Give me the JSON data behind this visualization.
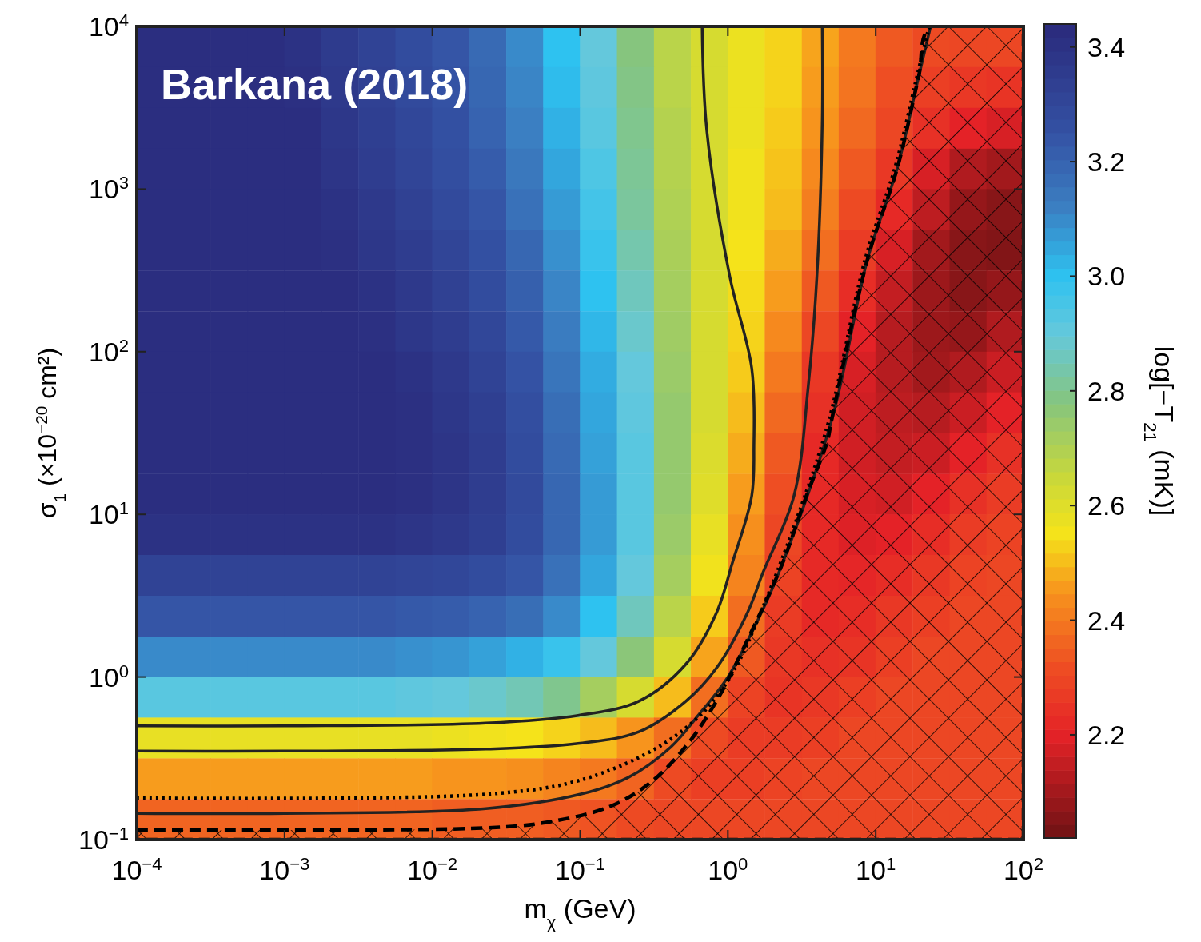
{
  "chart_data": {
    "type": "heatmap",
    "xlabel": "m$_{χ}$ (GeV)",
    "ylabel": "σ$_{1}$ (×10$^{−20}$ cm²)",
    "clabel": "log[−T$_{21}$ (mK)]",
    "annotations": [
      "Barkana (2018)"
    ],
    "log": "xy",
    "xlim": [
      0.0001,
      100
    ],
    "xticks": [
      {
        "value": 0.0001,
        "label": "10$^{−4}$"
      },
      {
        "value": 0.001,
        "label": "10$^{−3}$"
      },
      {
        "value": 0.01,
        "label": "10$^{−2}$"
      },
      {
        "value": 0.1,
        "label": "10$^{−1}$"
      },
      {
        "value": 1,
        "label": "10$^{0}$"
      },
      {
        "value": 10,
        "label": "10$^{1}$"
      },
      {
        "value": 100,
        "label": "10$^{2}$"
      }
    ],
    "ylim": [
      0.1,
      10000
    ],
    "yticks": [
      {
        "value": 0.1,
        "label": "10$^{−1}$"
      },
      {
        "value": 1,
        "label": "10$^{0}$"
      },
      {
        "value": 10,
        "label": "10$^{1}$"
      },
      {
        "value": 100,
        "label": "10$^{2}$"
      },
      {
        "value": 1000,
        "label": "10$^{3}$"
      },
      {
        "value": 10000,
        "label": "10$^{4}$"
      }
    ],
    "clim": [
      2.02,
      3.44
    ],
    "cticks": [
      2.2,
      2.4,
      2.6,
      2.8,
      {
        "value": 3,
        "label": "3.0"
      },
      3.2,
      3.4
    ],
    "x": [
      0.000133,
      0.000237,
      0.000422,
      0.00075,
      0.00133,
      0.00237,
      0.00422,
      0.0075,
      0.0133,
      0.0237,
      0.0422,
      0.075,
      0.133,
      0.237,
      0.422,
      0.75,
      1.33,
      2.37,
      4.22,
      7.5,
      13.3,
      23.7,
      42.2,
      75
    ],
    "y": [
      7500,
      4220,
      2370,
      1330,
      750,
      422,
      237,
      133,
      75,
      42.2,
      23.7,
      13.3,
      7.5,
      4.22,
      2.37,
      1.33,
      0.75,
      0.422,
      0.237,
      0.133
    ],
    "cells": [
      [
        3.42,
        3.42,
        3.42,
        3.42,
        3.4,
        3.36,
        3.32,
        3.28,
        3.24,
        3.18,
        3.1,
        3.0,
        2.9,
        2.78,
        2.68,
        2.62,
        2.57,
        2.53,
        2.47,
        2.4,
        2.34,
        2.31,
        2.3,
        2.3
      ],
      [
        3.42,
        3.42,
        3.42,
        3.42,
        3.41,
        3.37,
        3.33,
        3.29,
        3.25,
        3.19,
        3.11,
        3.01,
        2.91,
        2.79,
        2.68,
        2.62,
        2.57,
        2.53,
        2.46,
        2.39,
        2.32,
        2.28,
        2.26,
        2.25
      ],
      [
        3.42,
        3.42,
        3.42,
        3.42,
        3.42,
        3.38,
        3.34,
        3.3,
        3.26,
        3.2,
        3.12,
        3.03,
        2.92,
        2.8,
        2.69,
        2.62,
        2.57,
        2.52,
        2.45,
        2.37,
        2.3,
        2.24,
        2.2,
        2.18
      ],
      [
        3.42,
        3.42,
        3.42,
        3.42,
        3.42,
        3.39,
        3.35,
        3.31,
        3.27,
        3.22,
        3.14,
        3.05,
        2.94,
        2.81,
        2.69,
        2.62,
        2.56,
        2.51,
        2.43,
        2.34,
        2.26,
        2.18,
        2.12,
        2.1
      ],
      [
        3.42,
        3.42,
        3.42,
        3.42,
        3.42,
        3.4,
        3.37,
        3.33,
        3.29,
        3.24,
        3.16,
        3.07,
        2.96,
        2.82,
        2.7,
        2.62,
        2.56,
        2.5,
        2.41,
        2.31,
        2.22,
        2.14,
        2.08,
        2.06
      ],
      [
        3.42,
        3.42,
        3.42,
        3.42,
        3.42,
        3.41,
        3.38,
        3.35,
        3.31,
        3.26,
        3.19,
        3.09,
        2.98,
        2.84,
        2.71,
        2.62,
        2.55,
        2.48,
        2.38,
        2.27,
        2.18,
        2.1,
        2.06,
        2.05
      ],
      [
        3.42,
        3.42,
        3.42,
        3.42,
        3.42,
        3.42,
        3.4,
        3.37,
        3.33,
        3.28,
        3.21,
        3.11,
        3.0,
        2.86,
        2.72,
        2.62,
        2.54,
        2.46,
        2.34,
        2.23,
        2.15,
        2.09,
        2.06,
        2.08
      ],
      [
        3.42,
        3.42,
        3.42,
        3.42,
        3.42,
        3.42,
        3.41,
        3.38,
        3.35,
        3.3,
        3.23,
        3.13,
        3.02,
        2.88,
        2.73,
        2.62,
        2.53,
        2.43,
        2.3,
        2.2,
        2.13,
        2.09,
        2.08,
        2.12
      ],
      [
        3.42,
        3.42,
        3.42,
        3.42,
        3.42,
        3.42,
        3.42,
        3.4,
        3.37,
        3.32,
        3.25,
        3.15,
        3.04,
        2.9,
        2.74,
        2.62,
        2.52,
        2.4,
        2.26,
        2.18,
        2.13,
        2.1,
        2.12,
        2.16
      ],
      [
        3.42,
        3.42,
        3.42,
        3.42,
        3.42,
        3.42,
        3.42,
        3.41,
        3.38,
        3.34,
        3.27,
        3.17,
        3.05,
        2.91,
        2.75,
        2.62,
        2.5,
        2.37,
        2.24,
        2.17,
        2.14,
        2.13,
        2.16,
        2.2
      ],
      [
        3.42,
        3.42,
        3.42,
        3.42,
        3.42,
        3.42,
        3.42,
        3.41,
        3.39,
        3.35,
        3.28,
        3.18,
        3.06,
        2.92,
        2.75,
        2.61,
        2.48,
        2.34,
        2.22,
        2.17,
        2.15,
        2.16,
        2.2,
        2.24
      ],
      [
        3.42,
        3.42,
        3.42,
        3.42,
        3.42,
        3.42,
        3.42,
        3.41,
        3.39,
        3.35,
        3.29,
        3.19,
        3.07,
        2.92,
        2.75,
        2.6,
        2.46,
        2.32,
        2.22,
        2.18,
        2.17,
        2.2,
        2.24,
        2.27
      ],
      [
        3.4,
        3.4,
        3.4,
        3.4,
        3.4,
        3.4,
        3.4,
        3.39,
        3.37,
        3.34,
        3.28,
        3.19,
        3.07,
        2.92,
        2.74,
        2.58,
        2.44,
        2.3,
        2.22,
        2.19,
        2.2,
        2.23,
        2.27,
        2.29
      ],
      [
        3.32,
        3.32,
        3.32,
        3.32,
        3.32,
        3.32,
        3.32,
        3.31,
        3.3,
        3.28,
        3.24,
        3.16,
        3.05,
        2.9,
        2.72,
        2.56,
        2.42,
        2.29,
        2.22,
        2.21,
        2.23,
        2.26,
        2.29,
        2.3
      ],
      [
        3.24,
        3.24,
        3.24,
        3.24,
        3.24,
        3.24,
        3.24,
        3.23,
        3.22,
        3.2,
        3.17,
        3.1,
        3.0,
        2.86,
        2.68,
        2.52,
        2.38,
        2.27,
        2.22,
        2.23,
        2.26,
        2.28,
        2.3,
        2.3
      ],
      [
        3.1,
        3.1,
        3.1,
        3.1,
        3.1,
        3.1,
        3.1,
        3.09,
        3.08,
        3.06,
        3.03,
        2.98,
        2.9,
        2.77,
        2.62,
        2.47,
        2.34,
        2.26,
        2.24,
        2.25,
        2.28,
        2.3,
        2.3,
        2.3
      ],
      [
        2.92,
        2.92,
        2.92,
        2.92,
        2.92,
        2.92,
        2.92,
        2.91,
        2.9,
        2.88,
        2.85,
        2.8,
        2.72,
        2.62,
        2.5,
        2.38,
        2.29,
        2.25,
        2.26,
        2.28,
        2.3,
        2.3,
        2.3,
        2.3
      ],
      [
        2.58,
        2.58,
        2.58,
        2.58,
        2.58,
        2.58,
        2.58,
        2.58,
        2.57,
        2.56,
        2.55,
        2.53,
        2.5,
        2.45,
        2.38,
        2.31,
        2.27,
        2.27,
        2.28,
        2.3,
        2.3,
        2.3,
        2.3,
        2.3
      ],
      [
        2.46,
        2.46,
        2.46,
        2.46,
        2.46,
        2.46,
        2.46,
        2.46,
        2.45,
        2.45,
        2.44,
        2.42,
        2.4,
        2.36,
        2.31,
        2.28,
        2.28,
        2.29,
        2.3,
        2.3,
        2.3,
        2.3,
        2.3,
        2.3
      ],
      [
        2.36,
        2.36,
        2.36,
        2.36,
        2.36,
        2.36,
        2.36,
        2.36,
        2.35,
        2.35,
        2.35,
        2.34,
        2.33,
        2.31,
        2.3,
        2.3,
        2.3,
        2.3,
        2.3,
        2.3,
        2.3,
        2.3,
        2.3,
        2.3
      ]
    ],
    "series": [
      {
        "type": "line",
        "color": "#222222",
        "line_style": "solid",
        "x": [
          0.0001,
          0.001,
          0.023,
          0.097,
          0.25,
          0.52,
          0.84,
          1.07,
          1.45,
          1.5,
          1.45,
          1.03,
          0.72,
          0.67
        ],
        "values": [
          0.5,
          0.5,
          0.52,
          0.58,
          0.71,
          1.2,
          2.5,
          5,
          13,
          26,
          79,
          290,
          2300,
          10000
        ]
      },
      {
        "type": "line",
        "color": "#222222",
        "line_style": "solid",
        "x": [
          0.0001,
          0.001,
          0.023,
          0.097,
          0.25,
          0.52,
          0.84,
          1.36,
          1.73,
          2.8,
          3.5,
          4.0,
          4.35,
          4.35
        ],
        "values": [
          0.35,
          0.35,
          0.36,
          0.39,
          0.46,
          0.71,
          1.14,
          2.5,
          4.4,
          13,
          62,
          290,
          2600,
          10000
        ]
      },
      {
        "type": "line",
        "color": "#222222",
        "line_style": "solid",
        "x": [
          0.0001,
          0.001,
          0.023,
          0.1,
          0.21,
          0.41,
          0.63,
          1.0,
          1.5,
          2.1,
          5,
          8.8,
          14,
          19.5,
          23.5
        ],
        "values": [
          0.145,
          0.145,
          0.155,
          0.19,
          0.24,
          0.37,
          0.58,
          1.0,
          2.0,
          3.9,
          37,
          370,
          1350,
          4900,
          10000
        ]
      },
      {
        "type": "line",
        "color": "#000000",
        "line_style": "dotted",
        "x": [
          0.0001,
          0.023,
          0.097,
          0.32,
          0.66,
          1.07,
          1.73,
          3,
          4.8,
          8.5,
          13.5,
          19,
          23
        ],
        "values": [
          0.18,
          0.19,
          0.23,
          0.36,
          0.59,
          1.05,
          2.7,
          10,
          37,
          370,
          1350,
          4900,
          10000
        ]
      },
      {
        "type": "area",
        "color": "#000000",
        "line_style": "dashed",
        "x": [
          0.0001,
          0.023,
          0.06,
          0.16,
          0.31,
          0.55,
          0.88,
          1.36,
          2.3,
          3.4,
          4.7,
          5,
          8.8,
          14,
          19.5,
          23.5,
          100
        ],
        "values": [
          0.115,
          0.118,
          0.128,
          0.16,
          0.23,
          0.4,
          0.77,
          1.7,
          4.8,
          13,
          28,
          37,
          370,
          1350,
          4900,
          10000,
          10000
        ]
      }
    ]
  }
}
